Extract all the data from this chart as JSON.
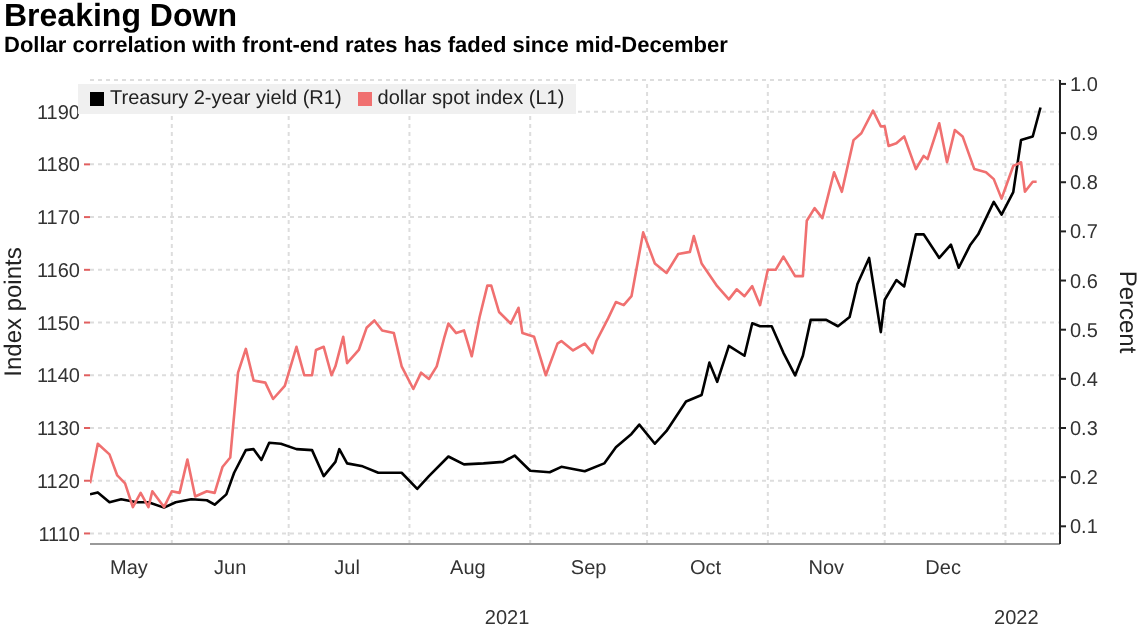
{
  "chart_data": {
    "type": "line",
    "title": "Breaking Down",
    "subtitle": "Dollar correlation with front-end rates has faded since mid-December",
    "ylabel": "Index points",
    "y2label": "Percent",
    "legend": "top left",
    "grid": true,
    "xlim": [
      "2021-05-11",
      "2022-01-15"
    ],
    "xticks": [
      {
        "value": "2021-05-21",
        "label": "May"
      },
      {
        "value": "2021-06-01",
        "label": null
      },
      {
        "value": "2021-06-16",
        "label": "Jun"
      },
      {
        "value": "2021-07-01",
        "label": null
      },
      {
        "value": "2021-07-16",
        "label": "Jul"
      },
      {
        "value": "2021-08-01",
        "label": null
      },
      {
        "value": "2021-08-16",
        "label": "Aug"
      },
      {
        "value": "2021-09-01",
        "label": null
      },
      {
        "value": "2021-09-16",
        "label": "Sep"
      },
      {
        "value": "2021-10-01",
        "label": null
      },
      {
        "value": "2021-10-16",
        "label": "Oct"
      },
      {
        "value": "2021-11-01",
        "label": null
      },
      {
        "value": "2021-11-16",
        "label": "Nov"
      },
      {
        "value": "2021-12-01",
        "label": null
      },
      {
        "value": "2021-12-16",
        "label": "Dec"
      },
      {
        "value": "2022-01-01",
        "label": null
      }
    ],
    "ylim": [
      1108,
      1196
    ],
    "yticks": [
      1110,
      1120,
      1130,
      1140,
      1150,
      1160,
      1170,
      1180,
      1190
    ],
    "y2lim": [
      0.064,
      1.008
    ],
    "y2ticks": [
      0.1,
      0.2,
      0.3,
      0.4,
      0.5,
      0.6,
      0.7,
      0.8,
      0.9,
      {
        "value": 1.0,
        "label": "1.0"
      }
    ],
    "annotations": [
      "2021",
      "2022"
    ],
    "series": [
      {
        "name": "Treasury 2-year yield (R1)",
        "color": "#000000",
        "axis": "y2",
        "x": [
          "2021-05-11",
          "2021-05-13",
          "2021-05-16",
          "2021-05-19",
          "2021-05-23",
          "2021-05-26",
          "2021-05-30",
          "2021-06-02",
          "2021-06-06",
          "2021-06-10",
          "2021-06-12",
          "2021-06-15",
          "2021-06-17",
          "2021-06-20",
          "2021-06-22",
          "2021-06-24",
          "2021-06-26",
          "2021-06-29",
          "2021-07-03",
          "2021-07-07",
          "2021-07-10",
          "2021-07-13",
          "2021-07-14",
          "2021-07-16",
          "2021-07-20",
          "2021-07-24",
          "2021-07-27",
          "2021-07-30",
          "2021-08-03",
          "2021-08-06",
          "2021-08-11",
          "2021-08-15",
          "2021-08-20",
          "2021-08-25",
          "2021-08-28",
          "2021-09-01",
          "2021-09-06",
          "2021-09-09",
          "2021-09-15",
          "2021-09-20",
          "2021-09-23",
          "2021-09-27",
          "2021-09-29",
          "2021-10-03",
          "2021-10-06",
          "2021-10-11",
          "2021-10-15",
          "2021-10-17",
          "2021-10-19",
          "2021-10-22",
          "2021-10-26",
          "2021-10-28",
          "2021-10-30",
          "2021-11-02",
          "2021-11-05",
          "2021-11-08",
          "2021-11-10",
          "2021-11-12",
          "2021-11-16",
          "2021-11-19",
          "2021-11-22",
          "2021-11-24",
          "2021-11-27",
          "2021-11-30",
          "2021-12-01",
          "2021-12-04",
          "2021-12-06",
          "2021-12-09",
          "2021-12-11",
          "2021-12-15",
          "2021-12-18",
          "2021-12-20",
          "2021-12-23",
          "2021-12-25",
          "2021-12-29",
          "2021-12-31",
          "2022-01-03",
          "2022-01-05",
          "2022-01-08",
          "2022-01-10"
        ],
        "values": [
          0.165,
          0.169,
          0.149,
          0.155,
          0.149,
          0.149,
          0.138,
          0.149,
          0.155,
          0.153,
          0.144,
          0.165,
          0.209,
          0.255,
          0.257,
          0.235,
          0.27,
          0.268,
          0.257,
          0.255,
          0.202,
          0.231,
          0.257,
          0.228,
          0.222,
          0.209,
          0.209,
          0.209,
          0.176,
          0.202,
          0.242,
          0.226,
          0.228,
          0.231,
          0.244,
          0.213,
          0.21,
          0.221,
          0.212,
          0.228,
          0.261,
          0.288,
          0.307,
          0.268,
          0.294,
          0.354,
          0.367,
          0.433,
          0.394,
          0.467,
          0.447,
          0.513,
          0.507,
          0.507,
          0.453,
          0.407,
          0.447,
          0.52,
          0.52,
          0.507,
          0.526,
          0.593,
          0.646,
          0.495,
          0.561,
          0.601,
          0.588,
          0.694,
          0.694,
          0.646,
          0.673,
          0.626,
          0.673,
          0.694,
          0.76,
          0.734,
          0.78,
          0.886,
          0.893,
          0.952
        ]
      },
      {
        "name": "dollar spot index (L1)",
        "color": "#f07070",
        "axis": "y",
        "x": [
          "2021-05-11",
          "2021-05-13",
          "2021-05-16",
          "2021-05-18",
          "2021-05-20",
          "2021-05-22",
          "2021-05-24",
          "2021-05-26",
          "2021-05-27",
          "2021-05-30",
          "2021-06-01",
          "2021-06-03",
          "2021-06-05",
          "2021-06-07",
          "2021-06-10",
          "2021-06-12",
          "2021-06-14",
          "2021-06-16",
          "2021-06-18",
          "2021-06-20",
          "2021-06-22",
          "2021-06-25",
          "2021-06-27",
          "2021-06-30",
          "2021-07-03",
          "2021-07-05",
          "2021-07-07",
          "2021-07-08",
          "2021-07-10",
          "2021-07-12",
          "2021-07-13",
          "2021-07-15",
          "2021-07-16",
          "2021-07-19",
          "2021-07-21",
          "2021-07-23",
          "2021-07-25",
          "2021-07-28",
          "2021-07-30",
          "2021-08-02",
          "2021-08-04",
          "2021-08-06",
          "2021-08-08",
          "2021-08-10",
          "2021-08-11",
          "2021-08-13",
          "2021-08-15",
          "2021-08-17",
          "2021-08-19",
          "2021-08-21",
          "2021-08-22",
          "2021-08-24",
          "2021-08-27",
          "2021-08-29",
          "2021-08-30",
          "2021-09-02",
          "2021-09-05",
          "2021-09-08",
          "2021-09-09",
          "2021-09-12",
          "2021-09-15",
          "2021-09-17",
          "2021-09-18",
          "2021-09-21",
          "2021-09-23",
          "2021-09-25",
          "2021-09-27",
          "2021-09-30",
          "2021-10-03",
          "2021-10-06",
          "2021-10-09",
          "2021-10-12",
          "2021-10-13",
          "2021-10-15",
          "2021-10-19",
          "2021-10-22",
          "2021-10-24",
          "2021-10-26",
          "2021-10-28",
          "2021-10-30",
          "2021-11-01",
          "2021-11-03",
          "2021-11-05",
          "2021-11-08",
          "2021-11-10",
          "2021-11-11",
          "2021-11-13",
          "2021-11-15",
          "2021-11-18",
          "2021-11-20",
          "2021-11-23",
          "2021-11-25",
          "2021-11-28",
          "2021-11-30",
          "2021-12-01",
          "2021-12-02",
          "2021-12-04",
          "2021-12-06",
          "2021-12-09",
          "2021-12-11",
          "2021-12-12",
          "2021-12-15",
          "2021-12-17",
          "2021-12-19",
          "2021-12-21",
          "2021-12-24",
          "2021-12-27",
          "2021-12-29",
          "2021-12-31",
          "2022-01-03",
          "2022-01-05",
          "2022-01-06",
          "2022-01-08",
          "2022-01-09"
        ],
        "values": [
          1119.5,
          1127,
          1125,
          1121,
          1119.5,
          1115,
          1117.7,
          1115,
          1118,
          1115,
          1118,
          1117.7,
          1124,
          1117,
          1118,
          1117.7,
          1122.6,
          1124.4,
          1140.5,
          1145,
          1139,
          1138.6,
          1135.5,
          1138,
          1145.4,
          1140,
          1140,
          1144.8,
          1145.4,
          1140,
          1141.7,
          1147.3,
          1142.3,
          1144.8,
          1149,
          1150.4,
          1148.5,
          1148,
          1141.7,
          1137.4,
          1140.5,
          1139.3,
          1141.7,
          1147.3,
          1149.8,
          1148,
          1148.5,
          1143.6,
          1151,
          1157,
          1157,
          1152,
          1149.8,
          1152.8,
          1148,
          1147.3,
          1140,
          1146,
          1146.5,
          1144.7,
          1146,
          1144.2,
          1146.5,
          1150.8,
          1153.9,
          1153.3,
          1155,
          1167.1,
          1161.2,
          1159.4,
          1163,
          1163.4,
          1166.4,
          1161.2,
          1156.9,
          1154.4,
          1156.3,
          1155,
          1156.9,
          1153.3,
          1160,
          1160,
          1162.5,
          1158.8,
          1158.8,
          1169.3,
          1171.7,
          1169.8,
          1178.5,
          1174.8,
          1184.6,
          1185.9,
          1190.2,
          1187.2,
          1187.2,
          1183.5,
          1184,
          1185.3,
          1179.1,
          1181.6,
          1181,
          1187.8,
          1180.4,
          1186.5,
          1185.3,
          1179.1,
          1178.5,
          1177.2,
          1173.5,
          1179.7,
          1180.4,
          1174.8,
          1176.7,
          1176.7
        ]
      }
    ]
  }
}
